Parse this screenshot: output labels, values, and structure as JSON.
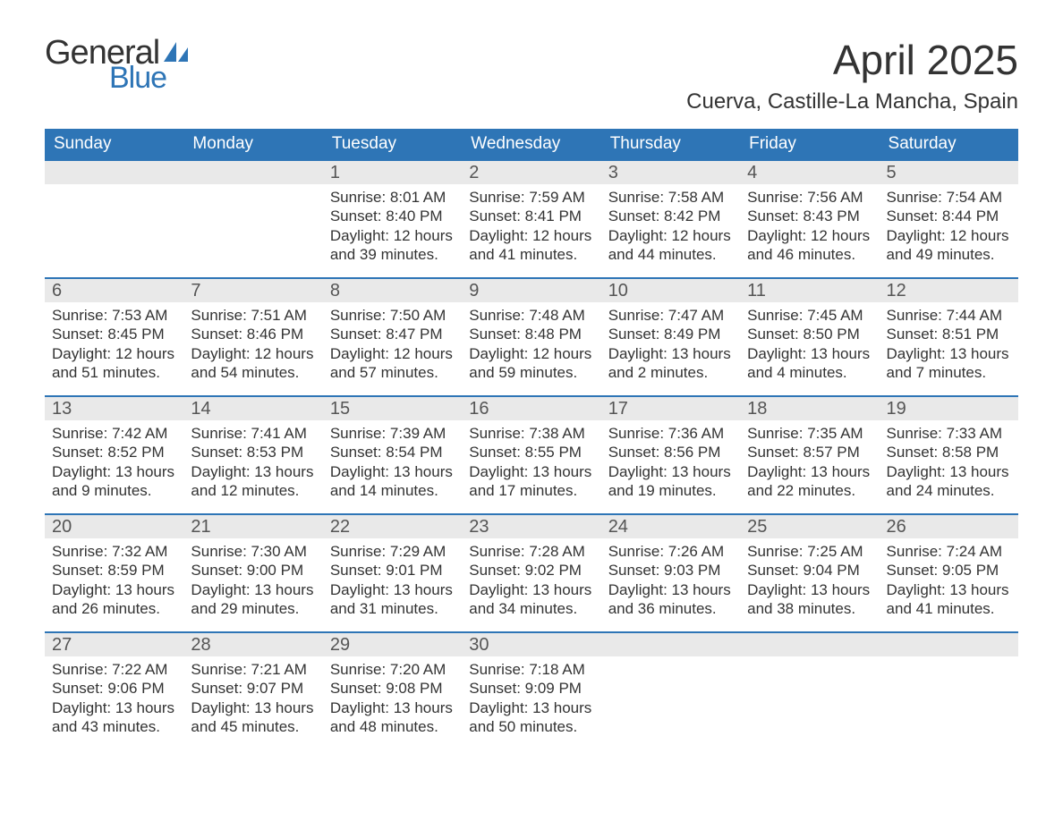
{
  "logo": {
    "word1": "General",
    "word2": "Blue",
    "icon_color": "#2e75b6"
  },
  "title": "April 2025",
  "location": "Cuerva, Castille-La Mancha, Spain",
  "colors": {
    "header_blue": "#2e75b6",
    "header_text": "#ffffff",
    "daynum_bg": "#e9e9e9",
    "text": "#333333",
    "rule": "#2e75b6"
  },
  "weekdays": [
    "Sunday",
    "Monday",
    "Tuesday",
    "Wednesday",
    "Thursday",
    "Friday",
    "Saturday"
  ],
  "weeks": [
    [
      {
        "empty": true
      },
      {
        "empty": true
      },
      {
        "n": "1",
        "sr": "Sunrise: 8:01 AM",
        "ss": "Sunset: 8:40 PM",
        "d1": "Daylight: 12 hours",
        "d2": "and 39 minutes."
      },
      {
        "n": "2",
        "sr": "Sunrise: 7:59 AM",
        "ss": "Sunset: 8:41 PM",
        "d1": "Daylight: 12 hours",
        "d2": "and 41 minutes."
      },
      {
        "n": "3",
        "sr": "Sunrise: 7:58 AM",
        "ss": "Sunset: 8:42 PM",
        "d1": "Daylight: 12 hours",
        "d2": "and 44 minutes."
      },
      {
        "n": "4",
        "sr": "Sunrise: 7:56 AM",
        "ss": "Sunset: 8:43 PM",
        "d1": "Daylight: 12 hours",
        "d2": "and 46 minutes."
      },
      {
        "n": "5",
        "sr": "Sunrise: 7:54 AM",
        "ss": "Sunset: 8:44 PM",
        "d1": "Daylight: 12 hours",
        "d2": "and 49 minutes."
      }
    ],
    [
      {
        "n": "6",
        "sr": "Sunrise: 7:53 AM",
        "ss": "Sunset: 8:45 PM",
        "d1": "Daylight: 12 hours",
        "d2": "and 51 minutes."
      },
      {
        "n": "7",
        "sr": "Sunrise: 7:51 AM",
        "ss": "Sunset: 8:46 PM",
        "d1": "Daylight: 12 hours",
        "d2": "and 54 minutes."
      },
      {
        "n": "8",
        "sr": "Sunrise: 7:50 AM",
        "ss": "Sunset: 8:47 PM",
        "d1": "Daylight: 12 hours",
        "d2": "and 57 minutes."
      },
      {
        "n": "9",
        "sr": "Sunrise: 7:48 AM",
        "ss": "Sunset: 8:48 PM",
        "d1": "Daylight: 12 hours",
        "d2": "and 59 minutes."
      },
      {
        "n": "10",
        "sr": "Sunrise: 7:47 AM",
        "ss": "Sunset: 8:49 PM",
        "d1": "Daylight: 13 hours",
        "d2": "and 2 minutes."
      },
      {
        "n": "11",
        "sr": "Sunrise: 7:45 AM",
        "ss": "Sunset: 8:50 PM",
        "d1": "Daylight: 13 hours",
        "d2": "and 4 minutes."
      },
      {
        "n": "12",
        "sr": "Sunrise: 7:44 AM",
        "ss": "Sunset: 8:51 PM",
        "d1": "Daylight: 13 hours",
        "d2": "and 7 minutes."
      }
    ],
    [
      {
        "n": "13",
        "sr": "Sunrise: 7:42 AM",
        "ss": "Sunset: 8:52 PM",
        "d1": "Daylight: 13 hours",
        "d2": "and 9 minutes."
      },
      {
        "n": "14",
        "sr": "Sunrise: 7:41 AM",
        "ss": "Sunset: 8:53 PM",
        "d1": "Daylight: 13 hours",
        "d2": "and 12 minutes."
      },
      {
        "n": "15",
        "sr": "Sunrise: 7:39 AM",
        "ss": "Sunset: 8:54 PM",
        "d1": "Daylight: 13 hours",
        "d2": "and 14 minutes."
      },
      {
        "n": "16",
        "sr": "Sunrise: 7:38 AM",
        "ss": "Sunset: 8:55 PM",
        "d1": "Daylight: 13 hours",
        "d2": "and 17 minutes."
      },
      {
        "n": "17",
        "sr": "Sunrise: 7:36 AM",
        "ss": "Sunset: 8:56 PM",
        "d1": "Daylight: 13 hours",
        "d2": "and 19 minutes."
      },
      {
        "n": "18",
        "sr": "Sunrise: 7:35 AM",
        "ss": "Sunset: 8:57 PM",
        "d1": "Daylight: 13 hours",
        "d2": "and 22 minutes."
      },
      {
        "n": "19",
        "sr": "Sunrise: 7:33 AM",
        "ss": "Sunset: 8:58 PM",
        "d1": "Daylight: 13 hours",
        "d2": "and 24 minutes."
      }
    ],
    [
      {
        "n": "20",
        "sr": "Sunrise: 7:32 AM",
        "ss": "Sunset: 8:59 PM",
        "d1": "Daylight: 13 hours",
        "d2": "and 26 minutes."
      },
      {
        "n": "21",
        "sr": "Sunrise: 7:30 AM",
        "ss": "Sunset: 9:00 PM",
        "d1": "Daylight: 13 hours",
        "d2": "and 29 minutes."
      },
      {
        "n": "22",
        "sr": "Sunrise: 7:29 AM",
        "ss": "Sunset: 9:01 PM",
        "d1": "Daylight: 13 hours",
        "d2": "and 31 minutes."
      },
      {
        "n": "23",
        "sr": "Sunrise: 7:28 AM",
        "ss": "Sunset: 9:02 PM",
        "d1": "Daylight: 13 hours",
        "d2": "and 34 minutes."
      },
      {
        "n": "24",
        "sr": "Sunrise: 7:26 AM",
        "ss": "Sunset: 9:03 PM",
        "d1": "Daylight: 13 hours",
        "d2": "and 36 minutes."
      },
      {
        "n": "25",
        "sr": "Sunrise: 7:25 AM",
        "ss": "Sunset: 9:04 PM",
        "d1": "Daylight: 13 hours",
        "d2": "and 38 minutes."
      },
      {
        "n": "26",
        "sr": "Sunrise: 7:24 AM",
        "ss": "Sunset: 9:05 PM",
        "d1": "Daylight: 13 hours",
        "d2": "and 41 minutes."
      }
    ],
    [
      {
        "n": "27",
        "sr": "Sunrise: 7:22 AM",
        "ss": "Sunset: 9:06 PM",
        "d1": "Daylight: 13 hours",
        "d2": "and 43 minutes."
      },
      {
        "n": "28",
        "sr": "Sunrise: 7:21 AM",
        "ss": "Sunset: 9:07 PM",
        "d1": "Daylight: 13 hours",
        "d2": "and 45 minutes."
      },
      {
        "n": "29",
        "sr": "Sunrise: 7:20 AM",
        "ss": "Sunset: 9:08 PM",
        "d1": "Daylight: 13 hours",
        "d2": "and 48 minutes."
      },
      {
        "n": "30",
        "sr": "Sunrise: 7:18 AM",
        "ss": "Sunset: 9:09 PM",
        "d1": "Daylight: 13 hours",
        "d2": "and 50 minutes."
      },
      {
        "empty": true
      },
      {
        "empty": true
      },
      {
        "empty": true
      }
    ]
  ]
}
